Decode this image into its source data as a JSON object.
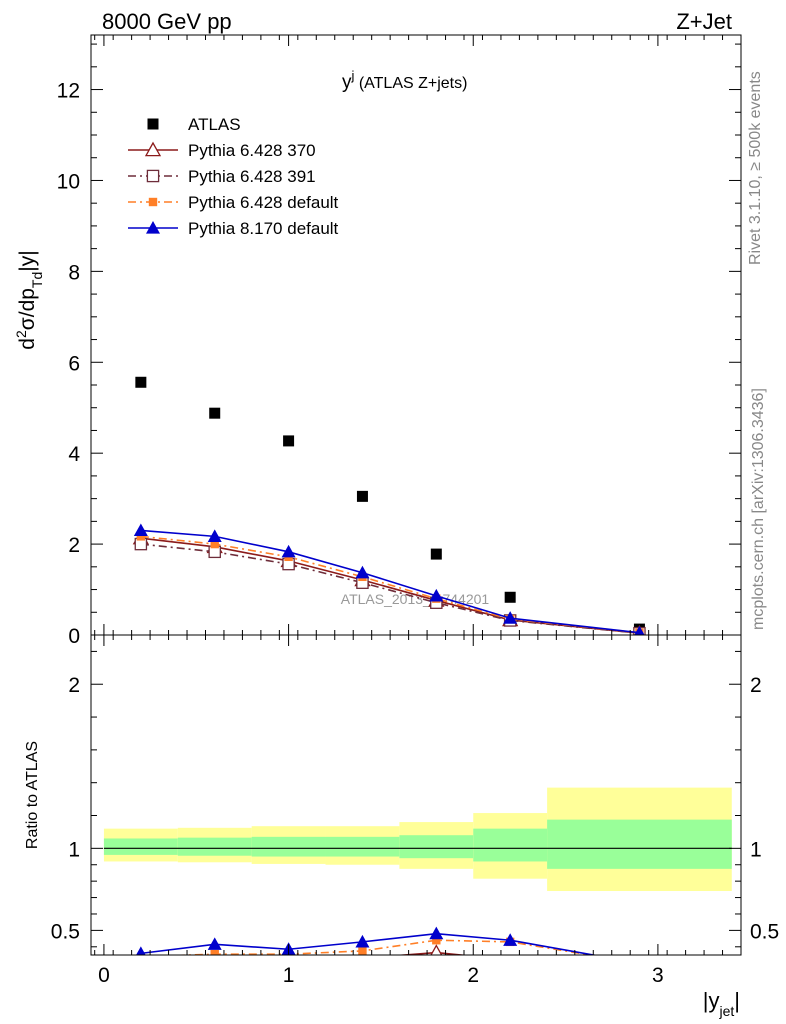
{
  "header": {
    "left": "8000 GeV pp",
    "right": "Z+Jet"
  },
  "side_labels": {
    "rivet": "Rivet 3.1.10, ≥ 500k events",
    "mcplots": "mcplots.cern.ch [arXiv:1306.3436]"
  },
  "watermark": "ATLAS_2013_I1744201",
  "chart_data": [
    {
      "panel": "main",
      "type": "line",
      "title_main": "y",
      "title_sup": "j",
      "title_rest": " (ATLAS Z+jets)",
      "ylabel": "d²σ/dp_Td|y|",
      "ylabel_parts": {
        "lead": "d",
        "sup": "2",
        "mid": "σ/dp",
        "sub": "Td",
        "tail": "|y|"
      },
      "ylim": [
        0,
        13.2
      ],
      "xlim": [
        -0.07,
        3.45
      ],
      "yticks": [
        0,
        2,
        4,
        6,
        8,
        10,
        12
      ],
      "ytick_labels": [
        "0",
        "2",
        "4",
        "6",
        "8",
        "10",
        "12"
      ],
      "legend_position": "top-left",
      "series": [
        {
          "name": "ATLAS",
          "style": "data",
          "color": "#000000",
          "x": [
            0.2,
            0.6,
            1.0,
            1.4,
            1.8,
            2.2,
            2.9
          ],
          "y": [
            5.56,
            4.88,
            4.27,
            3.05,
            1.78,
            0.83,
            0.13
          ]
        },
        {
          "name": "Pythia 6.428 370",
          "style": "open-triangle-solid",
          "color": "#8b1a1a",
          "x": [
            0.2,
            0.6,
            1.0,
            1.4,
            1.8,
            2.2,
            2.9
          ],
          "y": [
            2.13,
            1.94,
            1.63,
            1.21,
            0.76,
            0.33,
            0.04
          ]
        },
        {
          "name": "Pythia 6.428 391",
          "style": "open-square-dashdot",
          "color": "#6e2d3a",
          "x": [
            0.2,
            0.6,
            1.0,
            1.4,
            1.8,
            2.2,
            2.9
          ],
          "y": [
            2.0,
            1.83,
            1.56,
            1.15,
            0.71,
            0.32,
            0.04
          ]
        },
        {
          "name": "Pythia 6.428 default",
          "style": "filled-square-dashdot",
          "color": "#ff7f27",
          "x": [
            0.2,
            0.6,
            1.0,
            1.4,
            1.8,
            2.2,
            2.9
          ],
          "y": [
            2.17,
            2.0,
            1.72,
            1.28,
            0.8,
            0.35,
            0.05
          ]
        },
        {
          "name": "Pythia 8.170 default",
          "style": "filled-triangle-solid",
          "color": "#0000cc",
          "x": [
            0.2,
            0.6,
            1.0,
            1.4,
            1.8,
            2.2,
            2.9
          ],
          "y": [
            2.3,
            2.17,
            1.83,
            1.37,
            0.86,
            0.37,
            0.05
          ]
        }
      ]
    },
    {
      "panel": "ratio",
      "type": "line",
      "ylabel": "Ratio to ATLAS",
      "xlabel_main": "|y",
      "xlabel_sub": "jet",
      "xlabel_end": "|",
      "xlim": [
        -0.07,
        3.45
      ],
      "ylim": [
        0.35,
        2.3
      ],
      "yticks": [
        0.5,
        1,
        2
      ],
      "ytick_labels": [
        "0.5",
        "1",
        "2"
      ],
      "xticks": [
        0,
        1,
        2,
        3
      ],
      "xtick_labels": [
        "0",
        "1",
        "2",
        "3"
      ],
      "bins": [
        {
          "x_lo": 0.0,
          "x_hi": 0.4,
          "inner": [
            0.96,
            1.06
          ],
          "outer": [
            0.92,
            1.12
          ]
        },
        {
          "x_lo": 0.4,
          "x_hi": 0.8,
          "inner": [
            0.955,
            1.065
          ],
          "outer": [
            0.915,
            1.125
          ]
        },
        {
          "x_lo": 0.8,
          "x_hi": 1.2,
          "inner": [
            0.95,
            1.07
          ],
          "outer": [
            0.905,
            1.135
          ]
        },
        {
          "x_lo": 1.2,
          "x_hi": 1.6,
          "inner": [
            0.95,
            1.07
          ],
          "outer": [
            0.9,
            1.135
          ]
        },
        {
          "x_lo": 1.6,
          "x_hi": 2.0,
          "inner": [
            0.94,
            1.08
          ],
          "outer": [
            0.875,
            1.16
          ]
        },
        {
          "x_lo": 2.0,
          "x_hi": 2.4,
          "inner": [
            0.92,
            1.12
          ],
          "outer": [
            0.815,
            1.215
          ]
        },
        {
          "x_lo": 2.4,
          "x_hi": 3.4,
          "inner": [
            0.875,
            1.175
          ],
          "outer": [
            0.74,
            1.37
          ]
        }
      ],
      "series": [
        {
          "name": "Pythia 6.428 370",
          "style": "open-triangle-solid",
          "color": "#8b1a1a",
          "x": [
            0.2,
            0.6,
            1.0,
            1.4,
            1.8,
            2.2,
            2.9
          ],
          "y": [
            0.33,
            0.33,
            0.33,
            0.33,
            0.365,
            0.32,
            0.3
          ]
        },
        {
          "name": "Pythia 6.428 391",
          "style": "open-square-dashdot",
          "color": "#6e2d3a",
          "x": [
            0.2,
            0.6,
            1.0,
            1.4,
            1.8,
            2.2,
            2.9
          ],
          "y": [
            0.3,
            0.3,
            0.3,
            0.3,
            0.3,
            0.3,
            0.28
          ]
        },
        {
          "name": "Pythia 6.428 default",
          "style": "filled-square-dashdot",
          "color": "#ff7f27",
          "x": [
            0.2,
            0.6,
            1.0,
            1.4,
            1.8,
            2.2,
            2.9
          ],
          "y": [
            0.34,
            0.355,
            0.355,
            0.375,
            0.44,
            0.43,
            0.3
          ]
        },
        {
          "name": "Pythia 8.170 default",
          "style": "filled-triangle-solid",
          "color": "#0000cc",
          "x": [
            0.2,
            0.6,
            1.0,
            1.4,
            1.8,
            2.2,
            2.9
          ],
          "y": [
            0.36,
            0.415,
            0.385,
            0.43,
            0.48,
            0.44,
            0.3
          ]
        }
      ]
    }
  ]
}
